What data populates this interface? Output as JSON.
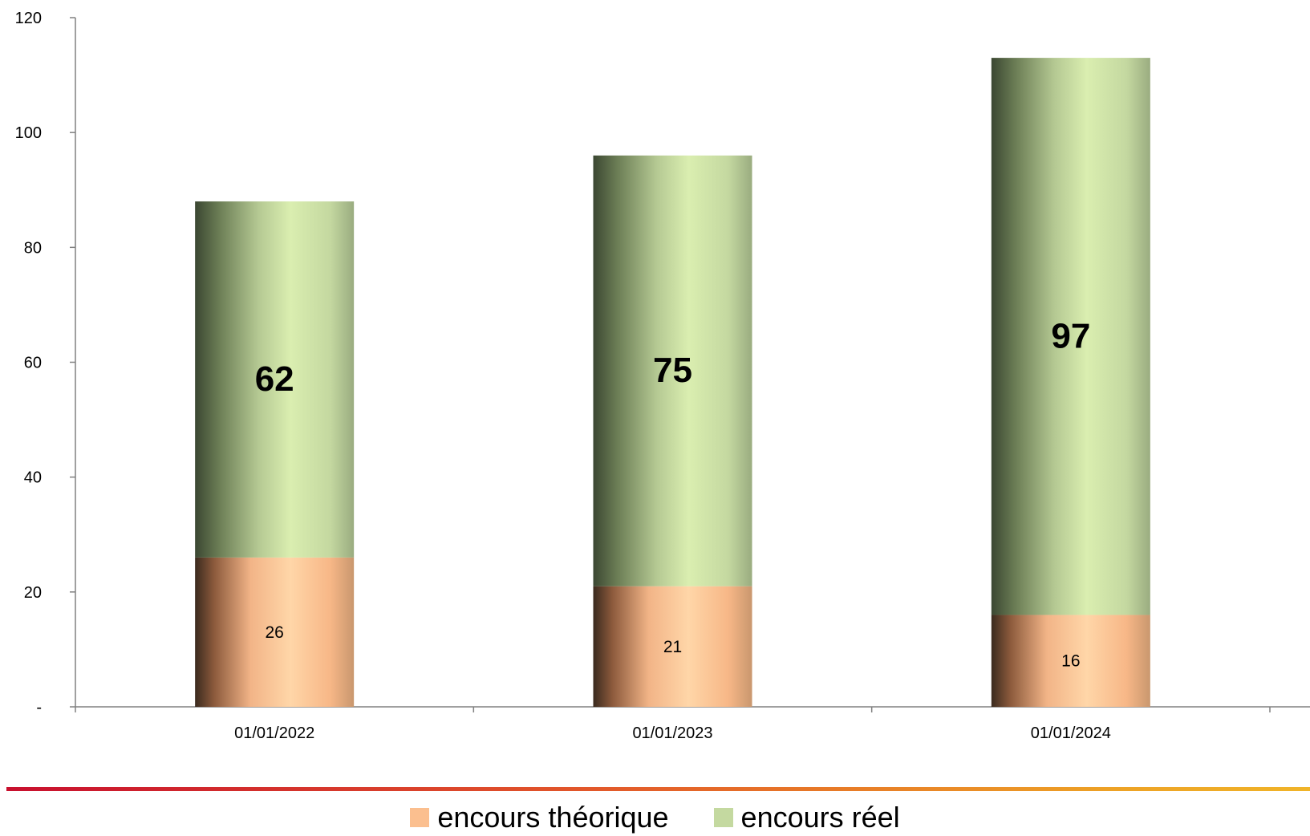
{
  "chart_data": {
    "type": "bar",
    "stacked": true,
    "categories": [
      "01/01/2022",
      "01/01/2023",
      "01/01/2024"
    ],
    "series": [
      {
        "name": "encours théorique",
        "values": [
          26,
          21,
          16
        ],
        "color": "#fbbf8f"
      },
      {
        "name": "encours réel",
        "values": [
          62,
          75,
          97
        ],
        "color": "#c4d9a0"
      }
    ],
    "ylim": [
      0,
      120
    ],
    "yticks": [
      {
        "value": 0,
        "label": "-"
      },
      {
        "value": 20,
        "label": "20"
      },
      {
        "value": 40,
        "label": "40"
      },
      {
        "value": 60,
        "label": "60"
      },
      {
        "value": 80,
        "label": "80"
      },
      {
        "value": 100,
        "label": "100"
      },
      {
        "value": 120,
        "label": "120"
      }
    ],
    "grid": false,
    "legend_position": "bottom"
  }
}
